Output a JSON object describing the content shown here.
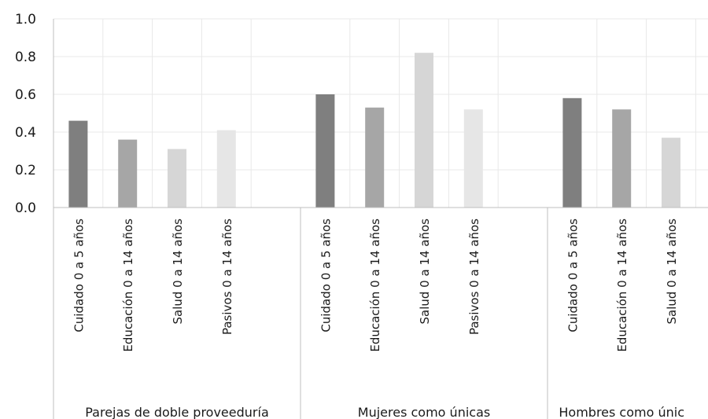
{
  "chart_data": {
    "type": "bar",
    "title": "",
    "xlabel": "",
    "ylabel": "",
    "ylim": [
      0,
      1.0
    ],
    "y_ticks": [
      "0.0",
      "0.2",
      "0.4",
      "0.6",
      "0.8",
      "1.0"
    ],
    "grid": true,
    "legend": "none",
    "groups": [
      {
        "label": "Parejas de doble proveeduría",
        "categories": [
          "Cuidado 0 a 5 años",
          "Educación 0 a 14 años",
          "Salud 0 a 14 años",
          "Pasivos 0 a 14 años"
        ],
        "values": [
          0.46,
          0.36,
          0.31,
          0.41
        ]
      },
      {
        "label": "Mujeres como únicas",
        "categories": [
          "Cuidado 0 a 5 años",
          "Educación 0 a 14 años",
          "Salud 0 a 14 años",
          "Pasivos 0 a 14 años"
        ],
        "values": [
          0.6,
          0.53,
          0.82,
          0.52
        ]
      },
      {
        "label": "Hombres como únic",
        "categories": [
          "Cuidado 0 a 5 años",
          "Educación 0 a 14 años",
          "Salud 0 a 14 años"
        ],
        "values": [
          0.58,
          0.52,
          0.37
        ]
      }
    ],
    "bar_colors": [
      "#7f7f7f",
      "#a6a6a6",
      "#d6d6d6",
      "#e6e6e6"
    ],
    "gridline_color": "#e8e8e8",
    "axis_color": "#bfbfbf"
  }
}
